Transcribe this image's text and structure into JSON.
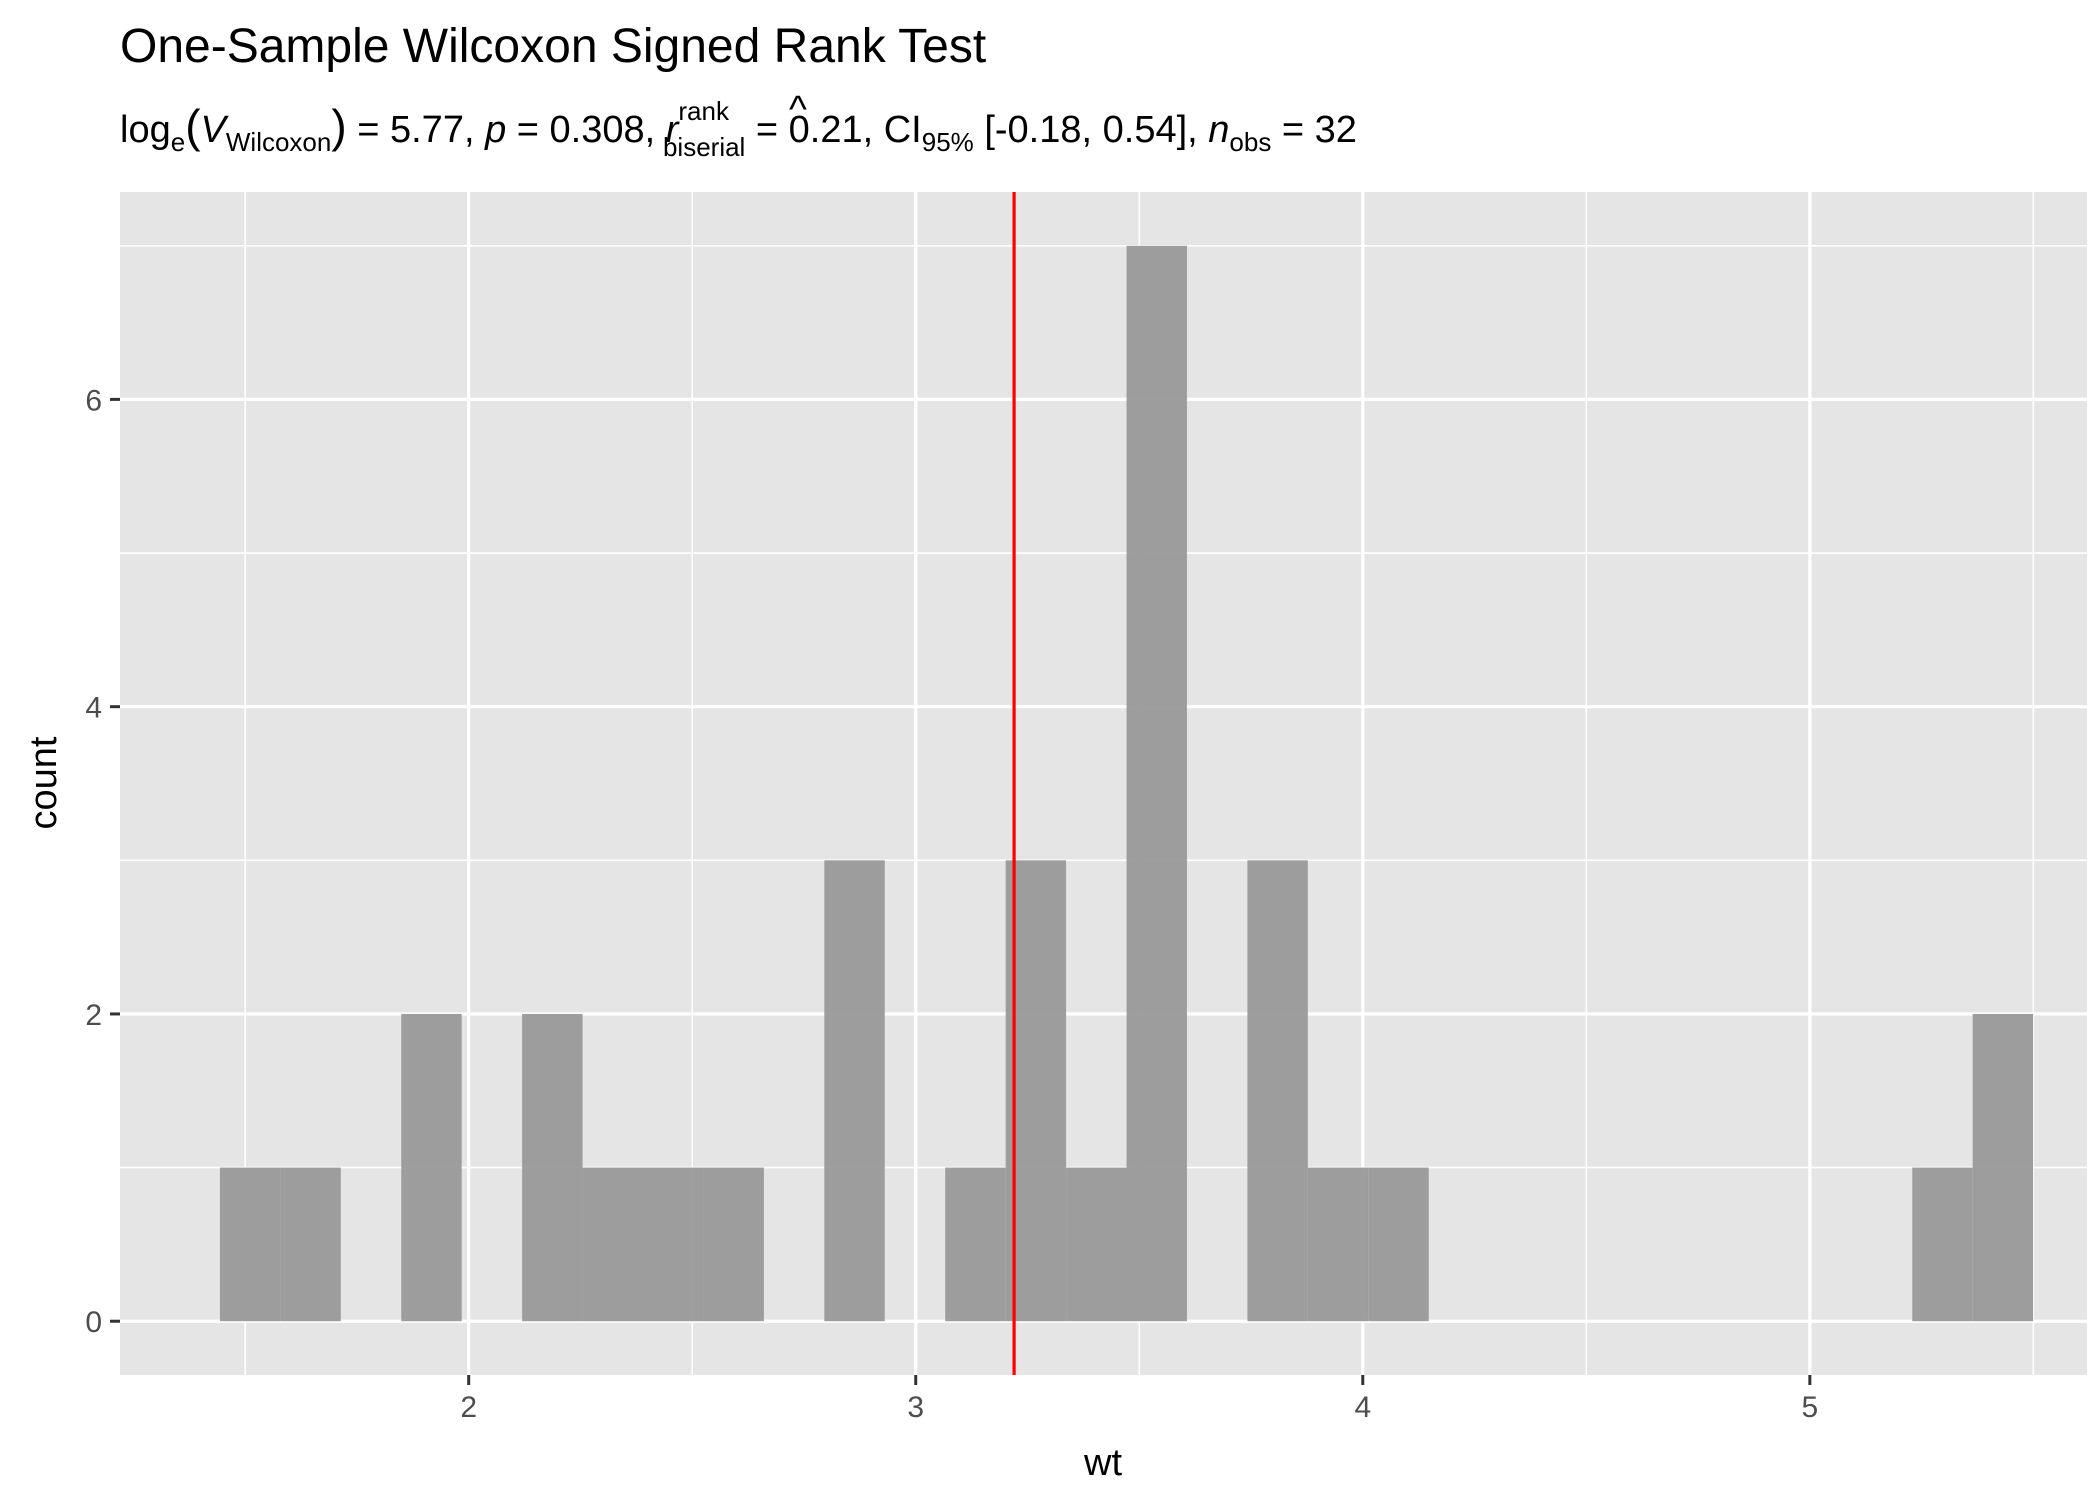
{
  "chart_data": {
    "type": "bar",
    "title": "One-Sample Wilcoxon Signed Rank Test",
    "subtitle": {
      "parts": [
        "log",
        "e",
        "(",
        "V",
        "Wilcoxon",
        ")",
        " = 5.77, ",
        "p",
        " = 0.308, ",
        "r",
        "rank",
        "biserial",
        " = 0.21, CI",
        "95%",
        " [-0.18, 0.54], ",
        "n",
        "obs",
        " = 32"
      ]
    },
    "xlabel": "wt",
    "ylabel": "count",
    "xlim": [
      1.22,
      5.62
    ],
    "ylim": [
      -0.35,
      7.35
    ],
    "x_ticks": [
      2,
      3,
      4,
      5
    ],
    "x_tick_labels": [
      "2",
      "3",
      "4",
      "5"
    ],
    "y_ticks": [
      0,
      2,
      4,
      6
    ],
    "y_tick_labels": [
      "0",
      "2",
      "4",
      "6"
    ],
    "bin_width": 0.1352,
    "bins": [
      {
        "x_start": 1.4435,
        "count": 1
      },
      {
        "x_start": 1.5787,
        "count": 1
      },
      {
        "x_start": 1.8491,
        "count": 2
      },
      {
        "x_start": 2.1195,
        "count": 2
      },
      {
        "x_start": 2.2547,
        "count": 1
      },
      {
        "x_start": 2.3899,
        "count": 1
      },
      {
        "x_start": 2.5251,
        "count": 1
      },
      {
        "x_start": 2.7955,
        "count": 3
      },
      {
        "x_start": 3.0659,
        "count": 1
      },
      {
        "x_start": 3.2011,
        "count": 3
      },
      {
        "x_start": 3.3363,
        "count": 1
      },
      {
        "x_start": 3.4715,
        "count": 7
      },
      {
        "x_start": 3.7419,
        "count": 3
      },
      {
        "x_start": 3.8771,
        "count": 1
      },
      {
        "x_start": 4.0123,
        "count": 1
      },
      {
        "x_start": 5.2291,
        "count": 1
      },
      {
        "x_start": 5.3643,
        "count": 2
      }
    ],
    "reference_line": {
      "x": 3.22,
      "color": "#ff0000"
    },
    "bar_color": "#999999",
    "panel_background": "#e5e5e5",
    "grid": true
  }
}
